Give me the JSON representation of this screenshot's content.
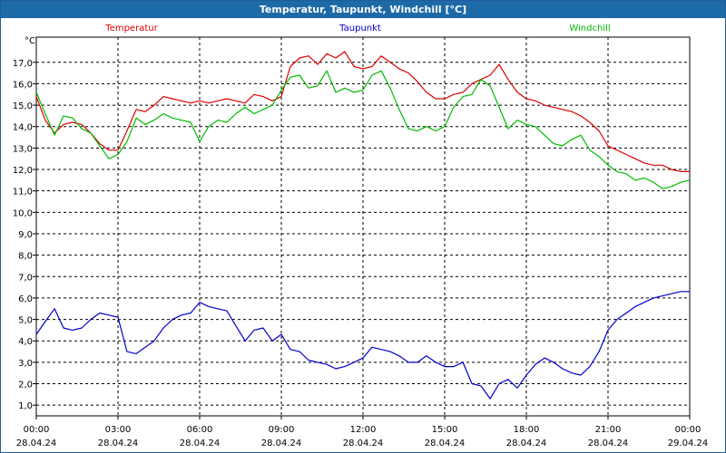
{
  "window": {
    "title": "Temperatur, Taupunkt, Windchill [°C]"
  },
  "chart_data": {
    "type": "line",
    "title": "Temperatur, Taupunkt, Windchill [°C]",
    "ylabel": "°C",
    "xlabel": "",
    "ylim": [
      0.5,
      17.9
    ],
    "xlim": [
      0,
      24
    ],
    "grid": true,
    "legend": "top",
    "y_ticks": [
      "1,0",
      "2,0",
      "3,0",
      "4,0",
      "5,0",
      "6,0",
      "7,0",
      "8,0",
      "9,0",
      "10,0",
      "11,0",
      "12,0",
      "13,0",
      "14,0",
      "15,0",
      "16,0",
      "17,0"
    ],
    "x_ticks": [
      {
        "time": "00:00",
        "date": "28.04.24"
      },
      {
        "time": "03:00",
        "date": "28.04.24"
      },
      {
        "time": "06:00",
        "date": "28.04.24"
      },
      {
        "time": "09:00",
        "date": "28.04.24"
      },
      {
        "time": "12:00",
        "date": "28.04.24"
      },
      {
        "time": "15:00",
        "date": "28.04.24"
      },
      {
        "time": "18:00",
        "date": "28.04.24"
      },
      {
        "time": "21:00",
        "date": "28.04.24"
      },
      {
        "time": "00:00",
        "date": "29.04.24"
      }
    ],
    "series": [
      {
        "name": "Temperatur",
        "color": "#dd0000",
        "x": [
          0,
          0.33,
          0.67,
          1,
          1.33,
          1.67,
          2,
          2.33,
          2.67,
          3,
          3.33,
          3.67,
          4,
          4.33,
          4.67,
          5,
          5.33,
          5.67,
          6,
          6.33,
          6.67,
          7,
          7.33,
          7.67,
          8,
          8.33,
          8.67,
          9,
          9.33,
          9.67,
          10,
          10.33,
          10.67,
          11,
          11.33,
          11.67,
          12,
          12.33,
          12.67,
          13,
          13.33,
          13.67,
          14,
          14.33,
          14.67,
          15,
          15.33,
          15.67,
          16,
          16.33,
          16.67,
          17,
          17.33,
          17.67,
          18,
          18.33,
          18.67,
          19,
          19.33,
          19.67,
          20,
          20.33,
          20.67,
          21,
          21.33,
          21.67,
          22,
          22.33,
          22.67,
          23,
          23.33,
          23.67,
          24
        ],
        "values": [
          15.4,
          14.3,
          13.7,
          14.1,
          14.2,
          14.1,
          13.7,
          13.2,
          12.9,
          12.9,
          13.8,
          14.8,
          14.7,
          15.0,
          15.4,
          15.3,
          15.2,
          15.1,
          15.2,
          15.1,
          15.2,
          15.3,
          15.2,
          15.1,
          15.5,
          15.4,
          15.2,
          15.4,
          16.8,
          17.2,
          17.3,
          16.9,
          17.4,
          17.2,
          17.5,
          16.8,
          16.7,
          16.8,
          17.3,
          17.0,
          16.7,
          16.5,
          16.1,
          15.6,
          15.3,
          15.3,
          15.5,
          15.6,
          16.0,
          16.2,
          16.4,
          16.9,
          16.2,
          15.6,
          15.3,
          15.2,
          15.0,
          14.9,
          14.8,
          14.7,
          14.5,
          14.2,
          13.8,
          13.1,
          12.9,
          12.7,
          12.5,
          12.3,
          12.2,
          12.2,
          12.0,
          11.9,
          11.9
        ]
      },
      {
        "name": "Taupunkt",
        "color": "#0000cc",
        "x": [
          0,
          0.33,
          0.67,
          1,
          1.33,
          1.67,
          2,
          2.33,
          2.67,
          3,
          3.33,
          3.67,
          4,
          4.33,
          4.67,
          5,
          5.33,
          5.67,
          6,
          6.33,
          6.67,
          7,
          7.33,
          7.67,
          8,
          8.33,
          8.67,
          9,
          9.33,
          9.67,
          10,
          10.33,
          10.67,
          11,
          11.33,
          11.67,
          12,
          12.33,
          12.67,
          13,
          13.33,
          13.67,
          14,
          14.33,
          14.67,
          15,
          15.33,
          15.67,
          16,
          16.33,
          16.67,
          17,
          17.33,
          17.67,
          18,
          18.33,
          18.67,
          19,
          19.33,
          19.67,
          20,
          20.33,
          20.67,
          21,
          21.33,
          21.67,
          22,
          22.33,
          22.67,
          23,
          23.33,
          23.67,
          24
        ],
        "values": [
          4.3,
          4.9,
          5.5,
          4.6,
          4.5,
          4.6,
          5.0,
          5.3,
          5.2,
          5.1,
          3.5,
          3.4,
          3.7,
          4.0,
          4.6,
          5.0,
          5.2,
          5.3,
          5.8,
          5.6,
          5.5,
          5.4,
          4.7,
          4.0,
          4.5,
          4.6,
          4.0,
          4.3,
          3.6,
          3.5,
          3.1,
          3.0,
          2.9,
          2.7,
          2.8,
          3.0,
          3.2,
          3.7,
          3.6,
          3.5,
          3.3,
          3.0,
          3.0,
          3.3,
          3.0,
          2.8,
          2.8,
          3.0,
          2.0,
          1.9,
          1.3,
          2.0,
          2.2,
          1.8,
          2.4,
          2.9,
          3.2,
          3.0,
          2.7,
          2.5,
          2.4,
          2.8,
          3.5,
          4.5,
          5.0,
          5.3,
          5.6,
          5.8,
          6.0,
          6.1,
          6.2,
          6.3,
          6.3
        ]
      },
      {
        "name": "Windchill",
        "color": "#00bb00",
        "x": [
          0,
          0.33,
          0.67,
          1,
          1.33,
          1.67,
          2,
          2.33,
          2.67,
          3,
          3.33,
          3.67,
          4,
          4.33,
          4.67,
          5,
          5.33,
          5.67,
          6,
          6.33,
          6.67,
          7,
          7.33,
          7.67,
          8,
          8.33,
          8.67,
          9,
          9.33,
          9.67,
          10,
          10.33,
          10.67,
          11,
          11.33,
          11.67,
          12,
          12.33,
          12.67,
          13,
          13.33,
          13.67,
          14,
          14.33,
          14.67,
          15,
          15.33,
          15.67,
          16,
          16.33,
          16.67,
          17,
          17.33,
          17.67,
          18,
          18.33,
          18.67,
          19,
          19.33,
          19.67,
          20,
          20.33,
          20.67,
          21,
          21.33,
          21.67,
          22,
          22.33,
          22.67,
          23,
          23.33,
          23.67,
          24
        ],
        "values": [
          15.6,
          14.6,
          13.6,
          14.5,
          14.4,
          13.9,
          13.7,
          13.1,
          12.5,
          12.7,
          13.3,
          14.4,
          14.1,
          14.3,
          14.6,
          14.4,
          14.3,
          14.2,
          13.3,
          14.0,
          14.3,
          14.2,
          14.6,
          14.9,
          14.6,
          14.8,
          15.0,
          15.7,
          16.3,
          16.4,
          15.8,
          15.9,
          16.6,
          15.6,
          15.8,
          15.6,
          15.7,
          16.4,
          16.6,
          15.8,
          14.8,
          13.9,
          13.8,
          14.0,
          13.8,
          14.0,
          14.9,
          15.4,
          15.5,
          16.2,
          15.9,
          14.9,
          13.9,
          14.3,
          14.1,
          14.0,
          13.6,
          13.2,
          13.1,
          13.4,
          13.6,
          12.9,
          12.6,
          12.2,
          11.9,
          11.8,
          11.5,
          11.6,
          11.4,
          11.1,
          11.2,
          11.4,
          11.5
        ]
      }
    ]
  }
}
